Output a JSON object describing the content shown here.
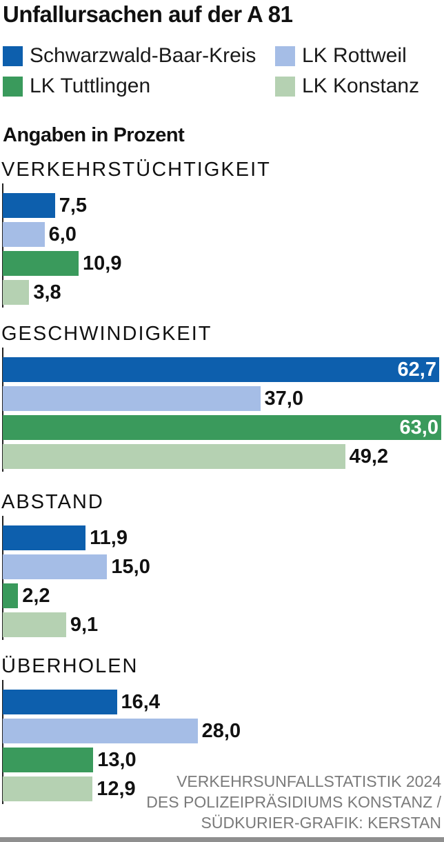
{
  "title": "Unfallursachen auf der A 81",
  "unit_note": "Angaben in Prozent",
  "legend": [
    {
      "label": "Schwarzwald-Baar-Kreis",
      "color": "#0d5fad"
    },
    {
      "label": "LK Rottweil",
      "color": "#a5bde6"
    },
    {
      "label": "LK Tuttlingen",
      "color": "#3a9a5c"
    },
    {
      "label": "LK Konstanz",
      "color": "#b5d1b2"
    }
  ],
  "source": [
    "VERKEHRSUNFALLSTATISTIK 2024",
    "DES POLIZEIPRÄSIDIUMS KONSTANZ /",
    "SÜDKURIER-GRAFIK: KERSTAN"
  ],
  "chart_data": {
    "type": "bar",
    "orientation": "horizontal",
    "categories": [
      "VERKEHRSTÜCHTIGKEIT",
      "GESCHWINDIGKEIT",
      "ABSTAND",
      "ÜBERHOLEN"
    ],
    "series": [
      {
        "name": "Schwarzwald-Baar-Kreis",
        "values": [
          7.5,
          62.7,
          11.9,
          16.4
        ],
        "labels": [
          "7,5",
          "62,7",
          "11,9",
          "16,4"
        ]
      },
      {
        "name": "LK Rottweil",
        "values": [
          6.0,
          37.0,
          15.0,
          28.0
        ],
        "labels": [
          "6,0",
          "37,0",
          "15,0",
          "28,0"
        ]
      },
      {
        "name": "LK Tuttlingen",
        "values": [
          10.9,
          63.0,
          2.2,
          13.0
        ],
        "labels": [
          "10,9",
          "63,0",
          "2,2",
          "13,0"
        ]
      },
      {
        "name": "LK Konstanz",
        "values": [
          3.8,
          49.2,
          9.1,
          12.9
        ],
        "labels": [
          "3,8",
          "49,2",
          "9,1",
          "12,9"
        ]
      }
    ],
    "xlim": [
      0,
      63.0
    ],
    "ylabel": "Angaben in Prozent"
  }
}
